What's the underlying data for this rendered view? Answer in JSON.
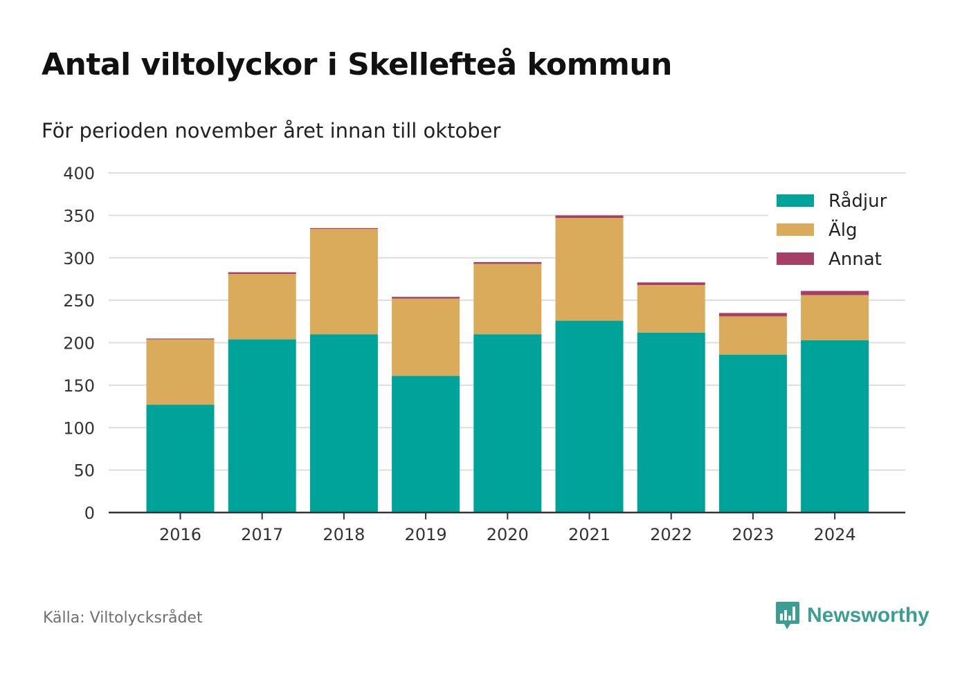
{
  "header": {
    "title": "Antal viltolyckor i Skellefteå kommun",
    "subtitle": "För perioden november året innan till oktober"
  },
  "footer": {
    "source": "Källa: Viltolycksrådet",
    "brand": "Newsworthy",
    "brand_icon": "bar-chart-speech-icon"
  },
  "colors": {
    "rådjur": "#00a39a",
    "älg": "#d9ab5a",
    "annat": "#a53f65",
    "grid": "#dddddd",
    "axis": "#333333",
    "brand": "#3c9e93"
  },
  "chart_data": {
    "type": "bar",
    "stacked": true,
    "categories": [
      "2016",
      "2017",
      "2018",
      "2019",
      "2020",
      "2021",
      "2022",
      "2023",
      "2024"
    ],
    "series": [
      {
        "name": "Rådjur",
        "values": [
          127,
          204,
          210,
          161,
          210,
          226,
          212,
          186,
          203
        ]
      },
      {
        "name": "Älg",
        "values": [
          77,
          77,
          124,
          91,
          83,
          121,
          56,
          45,
          53
        ]
      },
      {
        "name": "Annat",
        "values": [
          1,
          2,
          1,
          2,
          2,
          3,
          3,
          4,
          5
        ]
      }
    ],
    "ylim": [
      0,
      400
    ],
    "yticks": [
      0,
      50,
      100,
      150,
      200,
      250,
      300,
      350,
      400
    ],
    "grid": true,
    "legend_position": "top-right"
  }
}
